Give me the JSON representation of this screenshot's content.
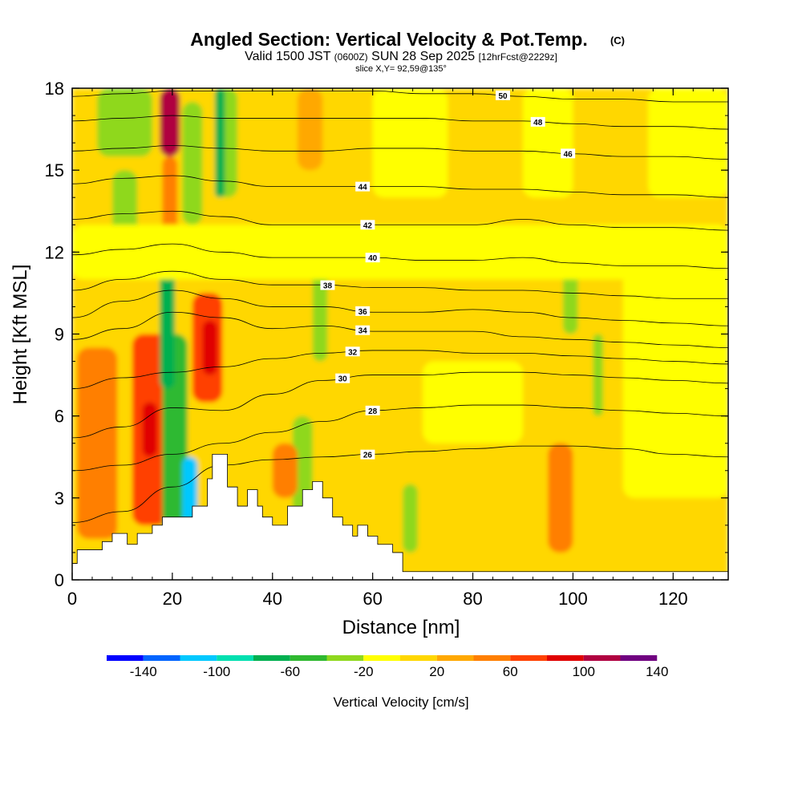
{
  "header": {
    "title": "Angled Section: Vertical Velocity & Pot.Temp.",
    "title_mark": "(C)",
    "valid_prefix": "Valid 1500 JST",
    "valid_utc": "(0600Z)",
    "valid_date": "SUN 28 Sep 2025",
    "forecast_info": "[12hrFcst@2229z]",
    "slice_info": "slice X,Y= 92,59@135°"
  },
  "chart_data": {
    "type": "heatmap",
    "xlabel": "Distance [nm]",
    "ylabel": "Height [Kft MSL]",
    "xlim": [
      0,
      131
    ],
    "ylim": [
      0,
      18
    ],
    "x_ticks": [
      0,
      20,
      40,
      60,
      80,
      100,
      120
    ],
    "y_ticks": [
      0,
      3,
      6,
      9,
      12,
      15,
      18
    ],
    "colorbar": {
      "label": "Vertical Velocity [cm/s]",
      "tick_values": [
        -140,
        -100,
        -60,
        -20,
        20,
        60,
        100,
        140
      ],
      "boundaries": [
        -160,
        -140,
        -120,
        -100,
        -80,
        -60,
        -40,
        -20,
        0,
        20,
        40,
        60,
        80,
        100,
        120,
        140,
        160
      ],
      "colors": [
        "#0000ff",
        "#0064ff",
        "#00c8ff",
        "#00e0b0",
        "#00b050",
        "#2fb930",
        "#8fd81e",
        "#ffff00",
        "#ffd700",
        "#ffa800",
        "#ff7f00",
        "#ff4000",
        "#e00000",
        "#b00040",
        "#700080"
      ]
    },
    "terrain_profile": {
      "x": [
        0,
        1,
        1,
        6,
        6,
        8,
        8,
        11,
        11,
        13,
        13,
        16,
        16,
        18,
        18,
        22,
        22,
        24,
        24,
        27,
        27,
        28,
        28,
        31,
        31,
        33,
        33,
        35,
        35,
        37,
        37,
        38,
        38,
        40,
        40,
        43,
        43,
        46,
        46,
        48,
        48,
        50,
        50,
        52,
        52,
        54,
        54,
        56,
        56,
        57,
        57,
        59,
        59,
        61,
        61,
        64,
        64,
        66,
        66,
        70,
        70,
        131
      ],
      "y": [
        0.6,
        0.6,
        1.1,
        1.1,
        1.4,
        1.4,
        1.7,
        1.7,
        1.3,
        1.3,
        1.7,
        1.7,
        2.0,
        2.0,
        2.3,
        2.3,
        2.3,
        2.3,
        2.7,
        2.7,
        3.7,
        3.7,
        4.6,
        4.6,
        3.4,
        3.4,
        2.7,
        2.7,
        3.3,
        3.3,
        2.7,
        2.7,
        2.3,
        2.3,
        2.0,
        2.0,
        2.7,
        2.7,
        3.3,
        3.3,
        3.6,
        3.6,
        3.0,
        3.0,
        2.3,
        2.3,
        2.0,
        2.0,
        1.6,
        1.6,
        2.0,
        2.0,
        1.6,
        1.6,
        1.3,
        1.3,
        1.0,
        1.0,
        0.3,
        0.3,
        0.3,
        0.3
      ]
    },
    "velocity_regions": [
      {
        "x": [
          0,
          131
        ],
        "y": [
          0,
          18
        ],
        "v": 10
      },
      {
        "x": [
          1,
          9
        ],
        "y": [
          1.5,
          8.5
        ],
        "v": 45
      },
      {
        "x": [
          12,
          19
        ],
        "y": [
          2,
          9
        ],
        "v": 65
      },
      {
        "x": [
          14,
          17
        ],
        "y": [
          4.5,
          6.5
        ],
        "v": 85
      },
      {
        "x": [
          24,
          30
        ],
        "y": [
          6.5,
          10.5
        ],
        "v": 65
      },
      {
        "x": [
          26,
          29
        ],
        "y": [
          7.5,
          9.5
        ],
        "v": 85
      },
      {
        "x": [
          17.5,
          21.5
        ],
        "y": [
          15.5,
          18
        ],
        "v": 105
      },
      {
        "x": [
          18,
          21
        ],
        "y": [
          12.5,
          15.5
        ],
        "v": 45
      },
      {
        "x": [
          5,
          16
        ],
        "y": [
          15.5,
          18
        ],
        "v": -30
      },
      {
        "x": [
          8,
          13
        ],
        "y": [
          11,
          15
        ],
        "v": -30
      },
      {
        "x": [
          22,
          26
        ],
        "y": [
          13,
          17.5
        ],
        "v": -30
      },
      {
        "x": [
          29,
          33
        ],
        "y": [
          14,
          18
        ],
        "v": -30
      },
      {
        "x": [
          18,
          23
        ],
        "y": [
          1.5,
          9
        ],
        "v": -50
      },
      {
        "x": [
          17.5,
          20.5
        ],
        "y": [
          7,
          12
        ],
        "v": -70
      },
      {
        "x": [
          28.5,
          30.5
        ],
        "y": [
          14,
          18
        ],
        "v": -70
      },
      {
        "x": [
          22,
          25
        ],
        "y": [
          2,
          4.5
        ],
        "v": -110
      },
      {
        "x": [
          44,
          48
        ],
        "y": [
          1.5,
          6
        ],
        "v": -30
      },
      {
        "x": [
          48,
          51
        ],
        "y": [
          8,
          12
        ],
        "v": -30
      },
      {
        "x": [
          66,
          69
        ],
        "y": [
          1,
          3.5
        ],
        "v": -30
      },
      {
        "x": [
          98,
          101
        ],
        "y": [
          9,
          12
        ],
        "v": -30
      },
      {
        "x": [
          104,
          106
        ],
        "y": [
          6,
          9
        ],
        "v": -30
      },
      {
        "x": [
          0,
          131
        ],
        "y": [
          11,
          13
        ],
        "v": -10
      },
      {
        "x": [
          70,
          90
        ],
        "y": [
          5,
          8
        ],
        "v": -10
      },
      {
        "x": [
          110,
          131
        ],
        "y": [
          3,
          12
        ],
        "v": -10
      },
      {
        "x": [
          60,
          75
        ],
        "y": [
          14,
          18
        ],
        "v": -10
      },
      {
        "x": [
          90,
          100
        ],
        "y": [
          14,
          18
        ],
        "v": -10
      },
      {
        "x": [
          115,
          131
        ],
        "y": [
          14,
          18
        ],
        "v": -10
      },
      {
        "x": [
          95,
          100
        ],
        "y": [
          1,
          5
        ],
        "v": 45
      },
      {
        "x": [
          40,
          45
        ],
        "y": [
          3,
          5
        ],
        "v": 45
      },
      {
        "x": [
          45,
          50
        ],
        "y": [
          15,
          18
        ],
        "v": 30
      }
    ],
    "isotherms": [
      {
        "label": "26",
        "label_x": 59,
        "y": [
          2.1,
          2.5,
          3.4,
          4.2,
          4.4,
          4.5,
          4.6,
          4.7,
          4.8,
          4.9,
          4.9,
          4.8,
          4.6,
          4.5
        ]
      },
      {
        "label": "28",
        "label_x": 60,
        "y": [
          4.0,
          4.2,
          4.6,
          5.0,
          5.4,
          5.8,
          6.2,
          6.3,
          6.4,
          6.4,
          6.3,
          6.2,
          6.1,
          6.0
        ]
      },
      {
        "label": "30",
        "label_x": 54,
        "y": [
          5.2,
          5.6,
          6.3,
          6.2,
          6.8,
          7.3,
          7.5,
          7.5,
          7.6,
          7.6,
          7.5,
          7.4,
          7.3,
          7.2
        ]
      },
      {
        "label": "32",
        "label_x": 56,
        "y": [
          7.0,
          7.4,
          7.6,
          7.8,
          8.1,
          8.3,
          8.4,
          8.4,
          8.3,
          8.3,
          8.2,
          8.1,
          8.0,
          7.9
        ]
      },
      {
        "label": "34",
        "label_x": 58,
        "y": [
          8.8,
          9.2,
          9.8,
          9.6,
          9.2,
          9.3,
          9.1,
          9.1,
          9.1,
          8.9,
          8.8,
          8.7,
          8.6,
          8.5
        ]
      },
      {
        "label": "36",
        "label_x": 58,
        "y": [
          9.6,
          10.2,
          10.6,
          10.3,
          10.0,
          10.0,
          9.8,
          9.8,
          9.9,
          9.8,
          9.6,
          9.5,
          9.4,
          9.3
        ]
      },
      {
        "label": "38",
        "label_x": 51,
        "y": [
          10.6,
          11.0,
          11.3,
          11.0,
          10.8,
          10.8,
          10.7,
          10.7,
          10.6,
          10.6,
          10.5,
          10.4,
          10.3,
          10.3
        ]
      },
      {
        "label": "40",
        "label_x": 60,
        "y": [
          11.9,
          12.1,
          12.3,
          12.0,
          11.8,
          11.8,
          11.8,
          11.7,
          11.7,
          11.8,
          11.6,
          11.5,
          11.5,
          11.4
        ]
      },
      {
        "label": "42",
        "label_x": 59,
        "y": [
          13.2,
          13.4,
          13.5,
          13.3,
          13.0,
          13.0,
          13.0,
          13.0,
          13.0,
          13.2,
          13.0,
          12.9,
          12.9,
          12.8
        ]
      },
      {
        "label": "44",
        "label_x": 58,
        "y": [
          14.5,
          14.7,
          14.8,
          14.6,
          14.4,
          14.4,
          14.4,
          14.4,
          14.3,
          14.3,
          14.2,
          14.1,
          14.1,
          14.0
        ]
      },
      {
        "label": "46",
        "label_x": 99,
        "y": [
          15.7,
          15.8,
          15.9,
          15.8,
          15.7,
          15.7,
          15.8,
          15.8,
          15.7,
          15.7,
          15.6,
          15.5,
          15.5,
          15.4
        ]
      },
      {
        "label": "48",
        "label_x": 93,
        "y": [
          16.8,
          16.9,
          17.0,
          16.9,
          16.9,
          16.9,
          16.9,
          16.9,
          16.8,
          16.8,
          16.7,
          16.6,
          16.6,
          16.5
        ]
      },
      {
        "label": "50",
        "label_x": 86,
        "y": [
          17.7,
          17.8,
          17.9,
          17.9,
          17.9,
          17.9,
          17.9,
          17.8,
          17.8,
          17.7,
          17.6,
          17.6,
          17.5,
          17.5
        ]
      }
    ],
    "isotherm_x": [
      0,
      10,
      20,
      30,
      40,
      50,
      60,
      70,
      80,
      90,
      100,
      110,
      120,
      131
    ]
  }
}
